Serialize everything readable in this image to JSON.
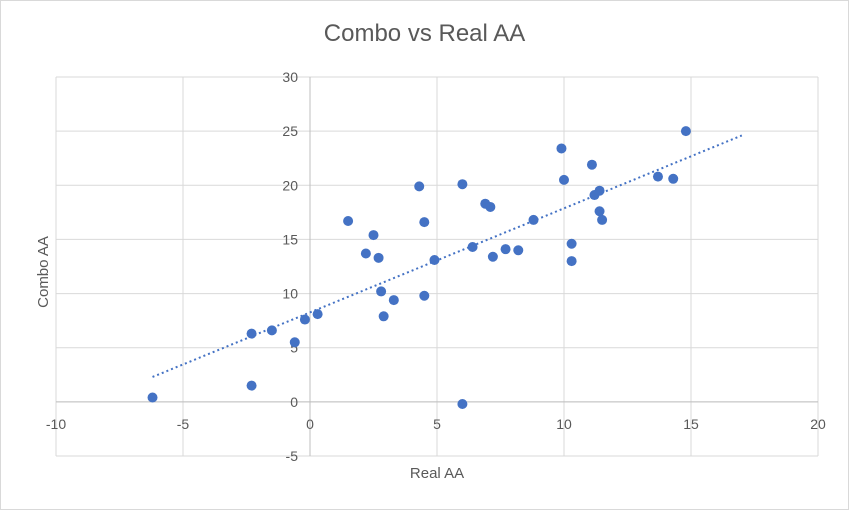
{
  "chart_data": {
    "type": "scatter",
    "title": "Combo vs Real AA",
    "xlabel": "Real AA",
    "ylabel": "Combo AA",
    "xlim": [
      -10,
      20
    ],
    "ylim": [
      -5,
      30
    ],
    "xticks": [
      -10,
      -5,
      0,
      5,
      10,
      15,
      20
    ],
    "yticks": [
      -5,
      0,
      5,
      10,
      15,
      20,
      25,
      30
    ],
    "grid": true,
    "legend": "none",
    "colors": {
      "points": "#4472c4",
      "trendline": "#4472c4",
      "grid": "#d9d9d9",
      "text": "#595959"
    },
    "series": [
      {
        "points": [
          [
            -6.2,
            0.4
          ],
          [
            -2.3,
            6.3
          ],
          [
            -2.3,
            1.5
          ],
          [
            -1.5,
            6.6
          ],
          [
            -0.6,
            5.5
          ],
          [
            -0.2,
            7.6
          ],
          [
            0.3,
            8.1
          ],
          [
            1.5,
            16.7
          ],
          [
            2.2,
            13.7
          ],
          [
            2.5,
            15.4
          ],
          [
            2.7,
            13.3
          ],
          [
            2.8,
            10.2
          ],
          [
            2.9,
            7.9
          ],
          [
            3.3,
            9.4
          ],
          [
            4.3,
            19.9
          ],
          [
            4.5,
            16.6
          ],
          [
            4.5,
            9.8
          ],
          [
            4.9,
            13.1
          ],
          [
            6.0,
            -0.2
          ],
          [
            6.0,
            20.1
          ],
          [
            6.4,
            14.3
          ],
          [
            6.9,
            18.3
          ],
          [
            7.1,
            18.0
          ],
          [
            7.2,
            13.4
          ],
          [
            7.7,
            14.1
          ],
          [
            8.2,
            14.0
          ],
          [
            8.8,
            16.8
          ],
          [
            9.9,
            23.4
          ],
          [
            10.0,
            20.5
          ],
          [
            10.3,
            14.6
          ],
          [
            10.3,
            13.0
          ],
          [
            11.1,
            21.9
          ],
          [
            11.2,
            19.1
          ],
          [
            11.4,
            19.5
          ],
          [
            11.4,
            17.6
          ],
          [
            11.5,
            16.8
          ],
          [
            13.7,
            20.8
          ],
          [
            14.3,
            20.6
          ],
          [
            14.8,
            25.0
          ]
        ]
      }
    ],
    "trendline": {
      "style": "dotted linear",
      "from": [
        -6.2,
        2.3
      ],
      "to": [
        17.0,
        24.6
      ]
    }
  }
}
